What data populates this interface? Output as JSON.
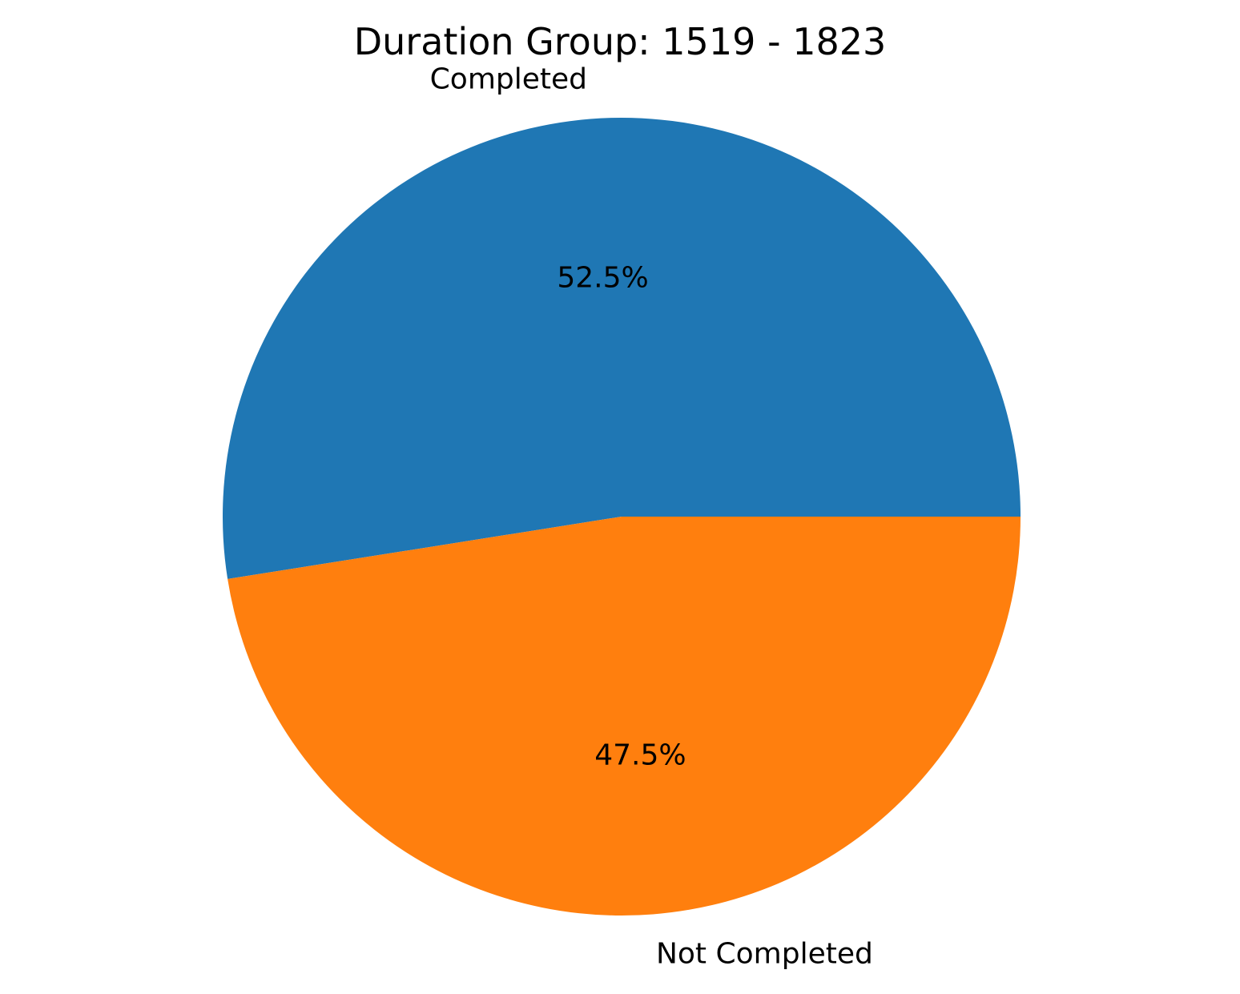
{
  "chart_data": {
    "type": "pie",
    "title": "Duration Group: 1519 - 1823",
    "slices": [
      {
        "label": "Completed",
        "value": 52.5,
        "pct_label": "52.5%",
        "color": "#1f77b4"
      },
      {
        "label": "Not Completed",
        "value": 47.5,
        "pct_label": "47.5%",
        "color": "#ff7f0e"
      }
    ],
    "start_angle_deg": 0,
    "direction": "counterclockwise",
    "legend": "none"
  }
}
